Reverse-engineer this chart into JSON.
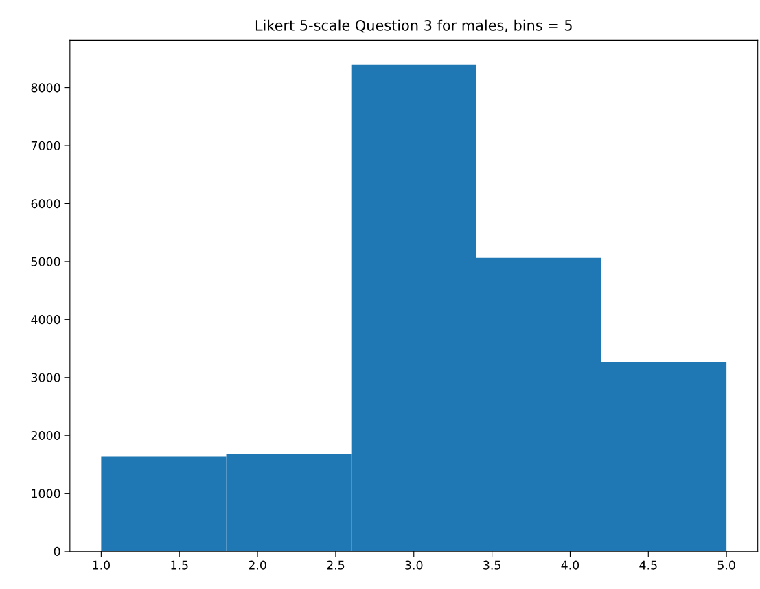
{
  "chart_data": {
    "type": "histogram",
    "title": "Likert 5-scale Question 3 for males, bins = 5",
    "bins": [
      1.0,
      1.8,
      2.6,
      3.4,
      4.2,
      5.0
    ],
    "values": [
      1640,
      1670,
      8400,
      5060,
      3270
    ],
    "color": "#1f77b4",
    "xlim": [
      0.8,
      5.2
    ],
    "xticks": [
      {
        "value": 1.0,
        "label": "1.0"
      },
      {
        "value": 1.5,
        "label": "1.5"
      },
      {
        "value": 2.0,
        "label": "2.0"
      },
      {
        "value": 2.5,
        "label": "2.5"
      },
      {
        "value": 3.0,
        "label": "3.0"
      },
      {
        "value": 3.5,
        "label": "3.5"
      },
      {
        "value": 4.0,
        "label": "4.0"
      },
      {
        "value": 4.5,
        "label": "4.5"
      },
      {
        "value": 5.0,
        "label": "5.0"
      }
    ],
    "ylim": [
      0,
      8820
    ],
    "yticks": [
      0,
      1000,
      2000,
      3000,
      4000,
      5000,
      6000,
      7000,
      8000
    ],
    "grid": false
  }
}
